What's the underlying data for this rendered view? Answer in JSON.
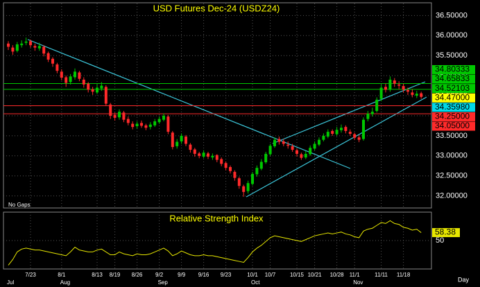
{
  "chart_data": {
    "type": "candlestick",
    "title": "USD Futures Dec-24 (USDZ24)",
    "note": "No Gaps",
    "x_unit_label": "Day",
    "categories": [
      null,
      null,
      null,
      null,
      null,
      "7/23",
      null,
      null,
      null,
      null,
      null,
      null,
      "8/1",
      null,
      null,
      null,
      null,
      null,
      null,
      null,
      "8/13",
      null,
      null,
      null,
      "8/19",
      null,
      null,
      null,
      null,
      "8/26",
      null,
      null,
      null,
      null,
      "9/2",
      null,
      null,
      null,
      null,
      "9/9",
      null,
      null,
      null,
      null,
      "9/16",
      null,
      null,
      null,
      null,
      "9/23",
      null,
      null,
      null,
      null,
      null,
      "10/1",
      null,
      null,
      null,
      "10/7",
      null,
      null,
      null,
      null,
      null,
      "10/15",
      null,
      null,
      null,
      "10/21",
      null,
      null,
      null,
      null,
      "10/28",
      null,
      null,
      null,
      "11/1",
      null,
      null,
      null,
      null,
      null,
      "11/11",
      null,
      null,
      null,
      null,
      "11/18",
      null,
      null,
      null,
      null
    ],
    "months": [
      "Jul",
      null,
      null,
      null,
      null,
      null,
      null,
      null,
      null,
      null,
      null,
      null,
      "Aug",
      null,
      null,
      null,
      null,
      null,
      null,
      null,
      null,
      null,
      null,
      null,
      null,
      null,
      null,
      null,
      null,
      null,
      null,
      null,
      null,
      null,
      "Sep",
      null,
      null,
      null,
      null,
      null,
      null,
      null,
      null,
      null,
      null,
      null,
      null,
      null,
      null,
      null,
      null,
      null,
      null,
      null,
      null,
      "Oct",
      null,
      null,
      null,
      null,
      null,
      null,
      null,
      null,
      null,
      null,
      null,
      null,
      null,
      null,
      null,
      null,
      null,
      null,
      null,
      null,
      null,
      null,
      "Nov",
      null,
      null,
      null,
      null,
      null,
      null,
      null,
      null,
      null,
      null,
      null,
      null,
      null,
      null,
      null
    ],
    "open": [
      35.8,
      35.7,
      35.62,
      35.76,
      35.82,
      35.86,
      35.74,
      35.68,
      35.72,
      35.56,
      35.42,
      35.28,
      35.1,
      34.96,
      34.84,
      34.96,
      35.08,
      34.9,
      34.8,
      34.66,
      34.58,
      34.68,
      34.72,
      34.28,
      34.02,
      33.96,
      34.08,
      33.92,
      33.8,
      33.74,
      33.82,
      33.76,
      33.72,
      33.76,
      33.84,
      33.9,
      33.98,
      33.58,
      33.24,
      33.36,
      33.48,
      33.28,
      33.16,
      33.06,
      32.98,
      33.06,
      32.96,
      33.02,
      32.92,
      32.82,
      32.72,
      32.6,
      32.44,
      32.24,
      32.12,
      32.3,
      32.54,
      32.68,
      32.84,
      33.04,
      33.24,
      33.42,
      33.36,
      33.28,
      33.24,
      33.14,
      33.04,
      32.96,
      33.04,
      33.18,
      33.28,
      33.4,
      33.48,
      33.62,
      33.54,
      33.64,
      33.72,
      33.6,
      33.54,
      33.46,
      33.42,
      33.92,
      34.04,
      34.12,
      34.42,
      34.72,
      34.66,
      34.88,
      34.78,
      34.74,
      34.64,
      34.58,
      34.5,
      34.56
    ],
    "high": [
      35.86,
      35.76,
      35.84,
      35.88,
      35.95,
      35.9,
      35.8,
      35.82,
      35.76,
      35.6,
      35.46,
      35.32,
      35.16,
      35.0,
      35.04,
      35.18,
      35.12,
      34.96,
      34.84,
      34.72,
      34.78,
      34.84,
      34.76,
      34.32,
      34.08,
      34.16,
      34.12,
      33.98,
      33.86,
      33.86,
      33.88,
      33.8,
      33.84,
      33.92,
      33.98,
      34.06,
      34.02,
      33.62,
      33.42,
      33.56,
      33.52,
      33.32,
      33.2,
      33.1,
      33.14,
      33.1,
      33.06,
      33.04,
      32.96,
      32.86,
      32.76,
      32.64,
      32.48,
      32.28,
      32.38,
      32.6,
      32.76,
      32.92,
      33.1,
      33.3,
      33.46,
      33.48,
      33.42,
      33.36,
      33.3,
      33.18,
      33.08,
      33.12,
      33.26,
      33.36,
      33.46,
      33.56,
      33.66,
      33.66,
      33.72,
      33.78,
      33.76,
      33.66,
      33.58,
      33.52,
      33.96,
      34.12,
      34.2,
      34.46,
      34.78,
      34.8,
      34.98,
      34.94,
      34.86,
      34.8,
      34.7,
      34.66,
      34.62,
      34.6
    ],
    "low": [
      35.64,
      35.52,
      35.58,
      35.7,
      35.76,
      35.7,
      35.62,
      35.62,
      35.48,
      35.34,
      35.22,
      35.06,
      34.88,
      34.72,
      34.78,
      34.9,
      34.86,
      34.7,
      34.58,
      34.52,
      34.54,
      34.62,
      34.24,
      33.92,
      33.88,
      33.9,
      33.84,
      33.76,
      33.66,
      33.68,
      33.7,
      33.64,
      33.66,
      33.72,
      33.8,
      33.86,
      33.54,
      33.16,
      33.18,
      33.3,
      33.24,
      33.08,
      32.98,
      32.94,
      32.94,
      32.92,
      32.9,
      32.84,
      32.74,
      32.64,
      32.56,
      32.38,
      32.18,
      31.98,
      32.06,
      32.26,
      32.48,
      32.64,
      32.8,
      33.0,
      33.2,
      33.28,
      33.24,
      33.18,
      33.1,
      32.98,
      32.9,
      32.92,
      33.0,
      33.14,
      33.24,
      33.36,
      33.44,
      33.5,
      33.5,
      33.58,
      33.56,
      33.5,
      33.4,
      33.34,
      33.38,
      33.86,
      33.98,
      34.08,
      34.36,
      34.58,
      34.6,
      34.72,
      34.66,
      34.58,
      34.52,
      34.46,
      34.44,
      34.42
    ],
    "close": [
      35.72,
      35.6,
      35.78,
      35.8,
      35.85,
      35.76,
      35.7,
      35.74,
      35.55,
      35.4,
      35.3,
      35.12,
      34.95,
      34.82,
      34.98,
      35.1,
      34.92,
      34.78,
      34.65,
      34.6,
      34.7,
      34.75,
      34.3,
      34.0,
      33.95,
      34.1,
      33.9,
      33.82,
      33.72,
      33.8,
      33.75,
      33.7,
      33.78,
      33.86,
      33.92,
      34.0,
      33.6,
      33.22,
      33.35,
      33.5,
      33.3,
      33.15,
      33.05,
      33.0,
      33.08,
      32.98,
      33.0,
      32.9,
      32.8,
      32.7,
      32.62,
      32.45,
      32.25,
      32.1,
      32.32,
      32.55,
      32.7,
      32.85,
      33.05,
      33.25,
      33.4,
      33.35,
      33.3,
      33.25,
      33.15,
      33.05,
      32.95,
      33.05,
      33.2,
      33.3,
      33.4,
      33.5,
      33.6,
      33.55,
      33.65,
      33.7,
      33.62,
      33.55,
      33.45,
      33.4,
      33.9,
      34.05,
      34.1,
      34.4,
      34.7,
      34.65,
      34.9,
      34.8,
      34.75,
      34.65,
      34.6,
      34.52,
      34.55,
      34.47
    ],
    "up_color": "#00c800",
    "down_color": "#ff2a2a",
    "ylim": [
      31.7,
      36.8
    ],
    "yticks": [
      {
        "value": 32,
        "label": "32.00000"
      },
      {
        "value": 32.5,
        "label": "32.50000"
      },
      {
        "value": 33,
        "label": "33.00000"
      },
      {
        "value": 33.5,
        "label": "33.50000"
      },
      {
        "value": 34,
        "label": "34.00000"
      },
      {
        "value": 34.5,
        "label": "34.50000"
      },
      {
        "value": 35,
        "label": "35.00000"
      },
      {
        "value": 35.5,
        "label": "35.50000"
      },
      {
        "value": 36,
        "label": "36.00000"
      },
      {
        "value": 36.5,
        "label": "36.50000"
      }
    ],
    "grid": true,
    "levels": [
      {
        "value": 34.80333,
        "color": "#00c800",
        "line": true
      },
      {
        "value": 34.65833,
        "color": "#00c800",
        "line": true
      },
      {
        "value": 34.52103,
        "color": "#00c800",
        "line": false
      },
      {
        "value": 34.47,
        "label": "34.47000",
        "color": "#ffff00",
        "line": false
      },
      {
        "value": 34.3598,
        "label": "34.35980",
        "color": "#00d8e8",
        "line": false
      },
      {
        "value": 34.25,
        "label": "34.25000",
        "color": "#ff2a2a",
        "line": true
      },
      {
        "value": 34.05,
        "label": "34.05000",
        "color": "#ff2a2a",
        "line": true
      }
    ],
    "indicator": {
      "type": "line",
      "title": "Relative Strength Index",
      "color": "#e8e800",
      "ylim": [
        20,
        80
      ],
      "yticks": [
        50
      ],
      "values": [
        24,
        30,
        38,
        41,
        42,
        41,
        40,
        40,
        39,
        38,
        37,
        36,
        35,
        34,
        38,
        43,
        40,
        39,
        38,
        38,
        40,
        41,
        38,
        35,
        35,
        38,
        36,
        35,
        34,
        36,
        35,
        35,
        36,
        38,
        40,
        42,
        39,
        34,
        36,
        39,
        37,
        35,
        34,
        34,
        35,
        34,
        34,
        33,
        32,
        31,
        30,
        29,
        28,
        27,
        32,
        38,
        42,
        45,
        49,
        53,
        55,
        54,
        53,
        52,
        51,
        50,
        49,
        51,
        53,
        55,
        56,
        57,
        58,
        57,
        58,
        59,
        57,
        56,
        54,
        53,
        60,
        62,
        63,
        66,
        69,
        68,
        71,
        68,
        67,
        64,
        63,
        61,
        62,
        58.38
      ]
    }
  }
}
